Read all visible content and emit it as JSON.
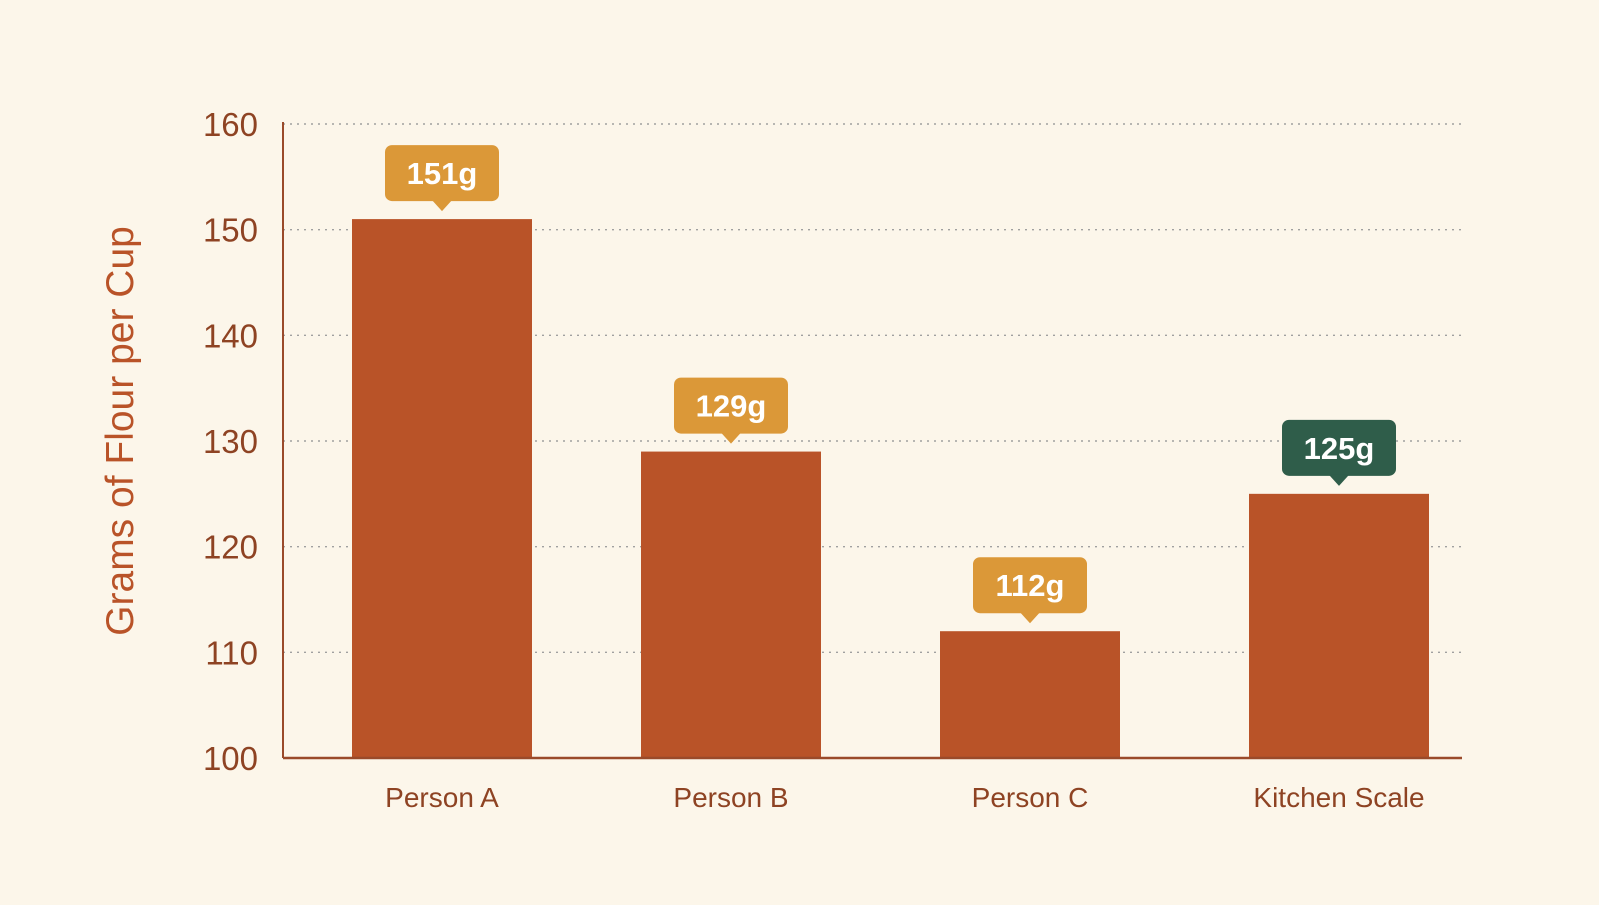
{
  "chart_data": {
    "type": "bar",
    "title": "",
    "xlabel": "",
    "ylabel": "Grams of Flour per Cup",
    "ylim": [
      100,
      160
    ],
    "yticks": [
      100,
      110,
      120,
      130,
      140,
      150,
      160
    ],
    "grid": true,
    "categories": [
      "Person A",
      "Person B",
      "Person C",
      "Kitchen Scale"
    ],
    "values": [
      151,
      129,
      112,
      125
    ],
    "data_labels": [
      "151g",
      "129g",
      "112g",
      "125g"
    ],
    "highlighted_category": "Kitchen Scale"
  },
  "colors": {
    "background": "#fcf6ea",
    "bar": "#b95328",
    "label_badge": "#db9838",
    "label_badge_highlight": "#2f5d4a",
    "label_text": "#ffffff",
    "axis": "#9a4a2a",
    "axis_text": "#8e4323",
    "grid": "#a0a0a0"
  }
}
